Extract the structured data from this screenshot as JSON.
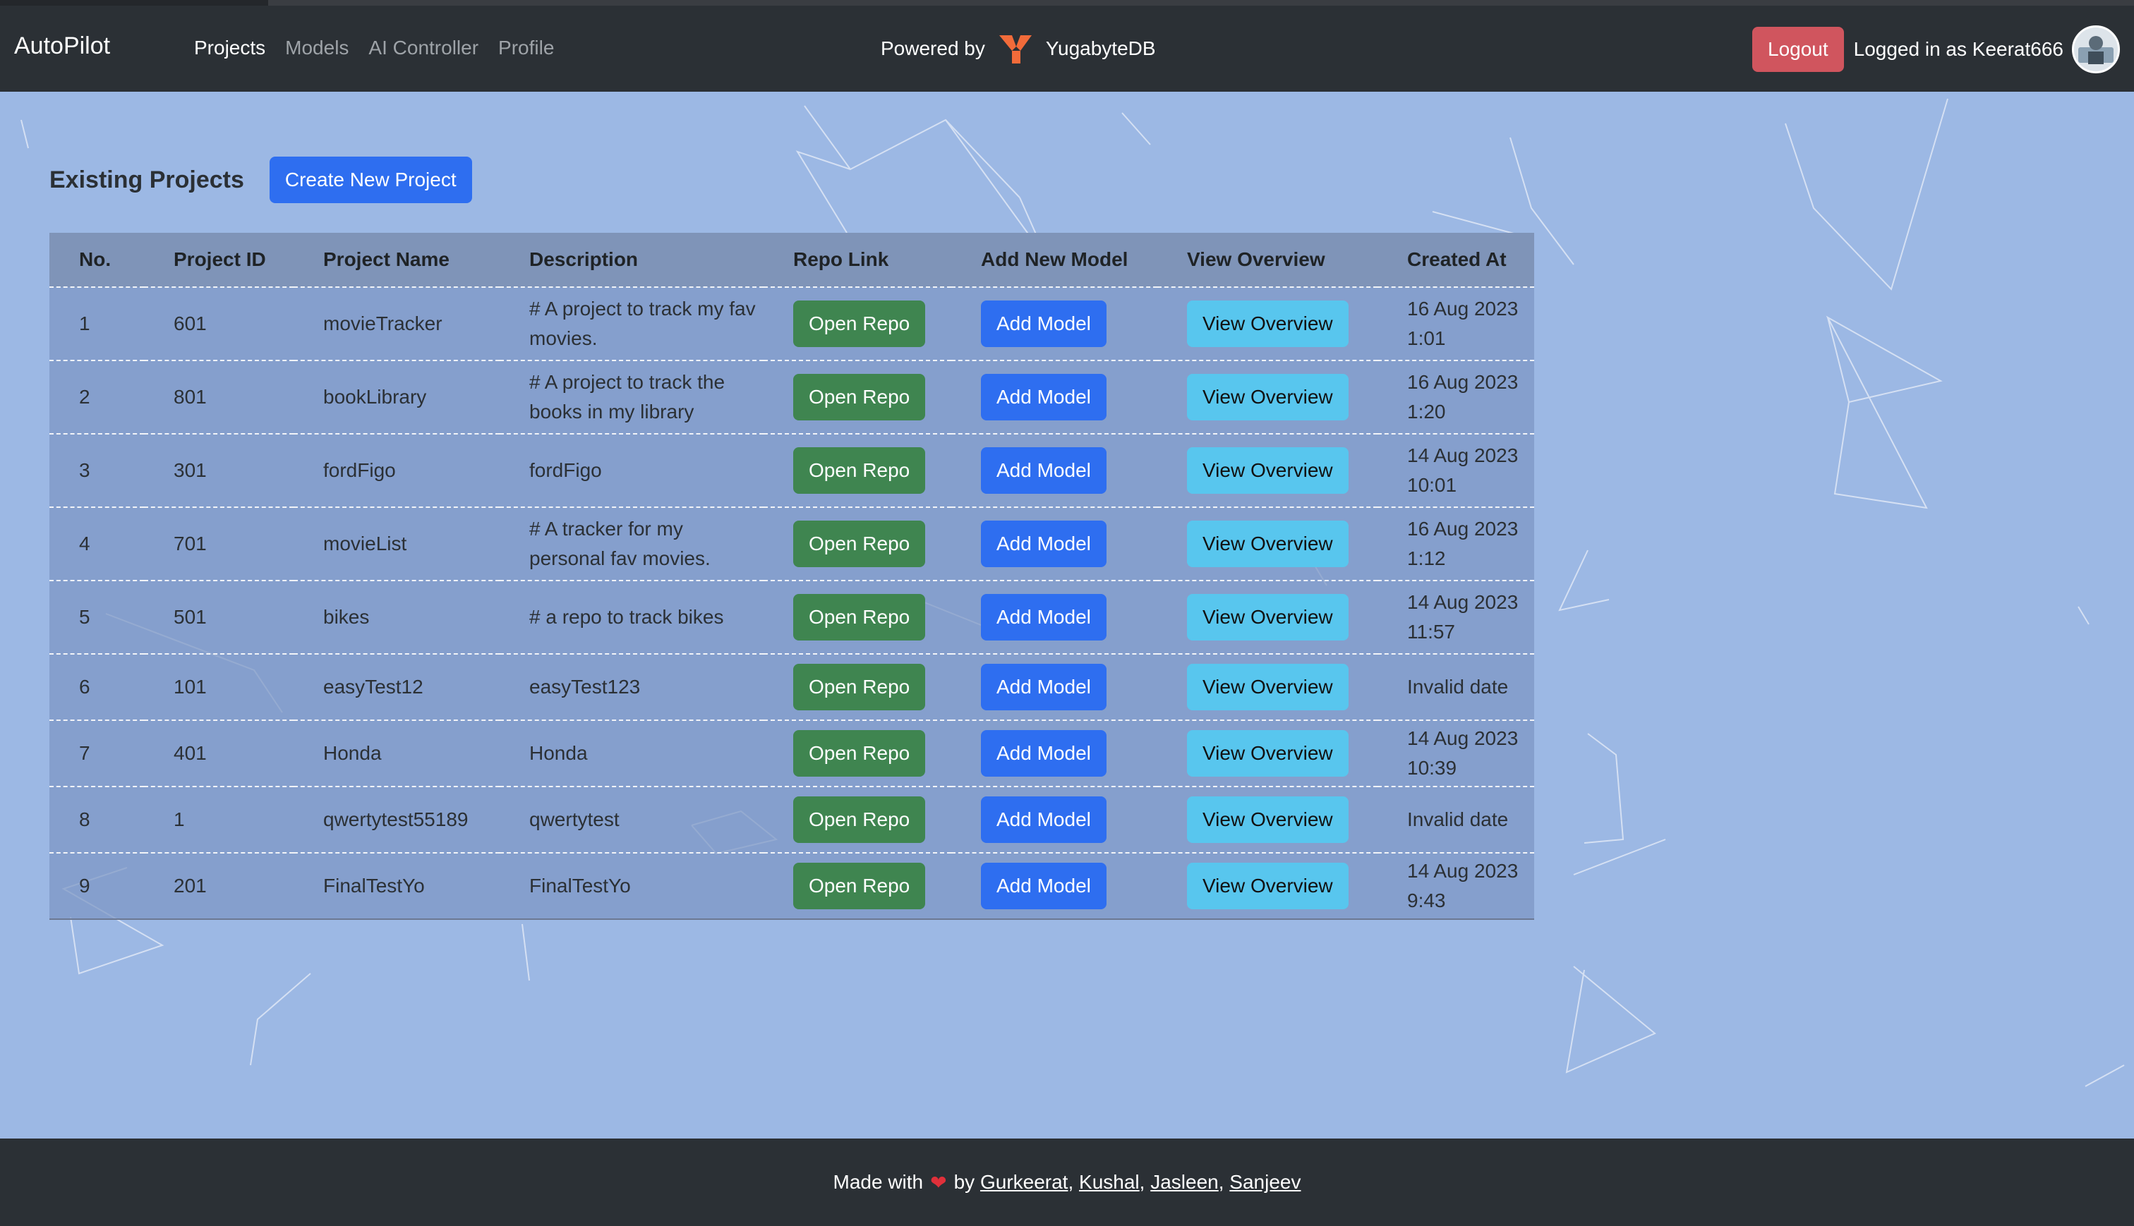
{
  "navbar": {
    "brand": "AutoPilot",
    "links": [
      "Projects",
      "Models",
      "AI Controller",
      "Profile"
    ],
    "powered_by": "Powered by",
    "db_name": "YugabyteDB",
    "logout": "Logout",
    "logged_in": "Logged in as Keerat666"
  },
  "main": {
    "title": "Existing Projects",
    "create_button": "Create New Project",
    "columns": [
      "No.",
      "Project ID",
      "Project Name",
      "Description",
      "Repo Link",
      "Add New Model",
      "View Overview",
      "Created At"
    ],
    "buttons": {
      "repo": "Open Repo",
      "model": "Add Model",
      "overview": "View Overview"
    },
    "rows": [
      {
        "no": "1",
        "id": "601",
        "name": "movieTracker",
        "desc": "# A project to track my fav movies.",
        "created": "16 Aug 2023 1:01"
      },
      {
        "no": "2",
        "id": "801",
        "name": "bookLibrary",
        "desc": "# A project to track the books in my library",
        "created": "16 Aug 2023 1:20"
      },
      {
        "no": "3",
        "id": "301",
        "name": "fordFigo",
        "desc": "fordFigo",
        "created": "14 Aug 2023 10:01"
      },
      {
        "no": "4",
        "id": "701",
        "name": "movieList",
        "desc": "# A tracker for my personal fav movies.",
        "created": "16 Aug 2023 1:12"
      },
      {
        "no": "5",
        "id": "501",
        "name": "bikes",
        "desc": "# a repo to track bikes",
        "created": "14 Aug 2023 11:57"
      },
      {
        "no": "6",
        "id": "101",
        "name": "easyTest12",
        "desc": "easyTest123",
        "created": "Invalid date"
      },
      {
        "no": "7",
        "id": "401",
        "name": "Honda",
        "desc": "Honda",
        "created": "14 Aug 2023 10:39"
      },
      {
        "no": "8",
        "id": "1",
        "name": "qwertytest55189",
        "desc": "qwertytest",
        "created": "Invalid date"
      },
      {
        "no": "9",
        "id": "201",
        "name": "FinalTestYo",
        "desc": "FinalTestYo",
        "created": "14 Aug 2023 9:43"
      }
    ]
  },
  "footer": {
    "made_with": "Made with",
    "by": "by",
    "authors": [
      "Gurkeerat",
      "Kushal",
      "Jasleen",
      "Sanjeev"
    ]
  },
  "colors": {
    "navbar_bg": "#2b3035",
    "page_bg": "#9cb8e4",
    "primary": "#2e6ef0",
    "success": "#3f8550",
    "info": "#58c6ee",
    "danger": "#d0555e"
  },
  "icons": {
    "db_logo": "yugabyte-logo",
    "heart": "heart-icon",
    "avatar": "user-avatar"
  }
}
